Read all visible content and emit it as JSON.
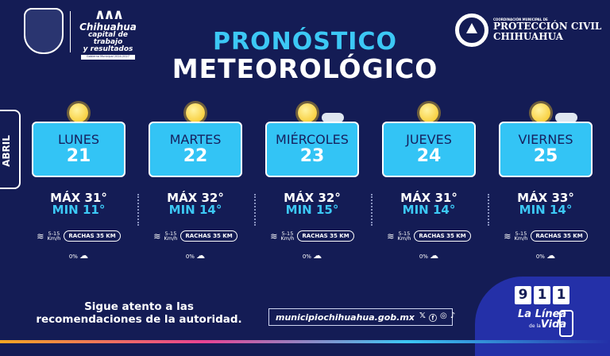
{
  "header": {
    "municipal_brand": {
      "name": "Chihuahua",
      "slogan_line1": "capital de trabajo",
      "slogan_line2": "y resultados",
      "tag": "Gobierno Municipal 2024-2027"
    },
    "title_line1": "PRONÓSTICO",
    "title_line2": "METEOROLÓGICO",
    "civil_protection": {
      "caption": "COORDINACIÓN MUNICIPAL DE",
      "line1": "PROTECCIÓN CIVIL",
      "line2": "CHIHUAHUA"
    }
  },
  "month": "ABRIL",
  "days": [
    {
      "day": "LUNES",
      "date": "21",
      "max": "MÁX 31°",
      "min": "MIN 11°",
      "icon": "sun-icon",
      "wind": "5-15",
      "wind_unit": "Km/h",
      "gusts": "RACHAS 35 KM",
      "rain": "0%"
    },
    {
      "day": "MARTES",
      "date": "22",
      "max": "MÁX 32°",
      "min": "MIN 14°",
      "icon": "sun-icon",
      "wind": "5-15",
      "wind_unit": "Km/h",
      "gusts": "RACHAS 35 KM",
      "rain": "0%"
    },
    {
      "day": "MIÉRCOLES",
      "date": "23",
      "max": "MÁX 32°",
      "min": "MIN 15°",
      "icon": "sun-cloud-icon",
      "wind": "5-15",
      "wind_unit": "Km/h",
      "gusts": "RACHAS 35 KM",
      "rain": "0%"
    },
    {
      "day": "JUEVES",
      "date": "24",
      "max": "MÁX 31°",
      "min": "MIN 14°",
      "icon": "sun-icon",
      "wind": "5-15",
      "wind_unit": "Km/h",
      "gusts": "RACHAS 35 KM",
      "rain": "0%"
    },
    {
      "day": "VIERNES",
      "date": "25",
      "max": "MÁX 33°",
      "min": "MIN 14°",
      "icon": "sun-cloud-icon",
      "wind": "5-15",
      "wind_unit": "Km/h",
      "gusts": "RACHAS 35 KM",
      "rain": "0%"
    }
  ],
  "footer": {
    "note": "Sigue atento a las recomendaciones de la autoridad.",
    "url": "municipiochihuahua.gob.mx",
    "social_icons": [
      "x-icon",
      "facebook-icon",
      "instagram-icon",
      "tiktok-icon"
    ],
    "emergency": {
      "digits": [
        "9",
        "1",
        "1"
      ],
      "line1": "La Línea",
      "line2_small": "de la",
      "line2": "Vida"
    }
  },
  "colors": {
    "background": "#141c55",
    "card": "#33c4f5",
    "accent": "#3cc8f5"
  }
}
